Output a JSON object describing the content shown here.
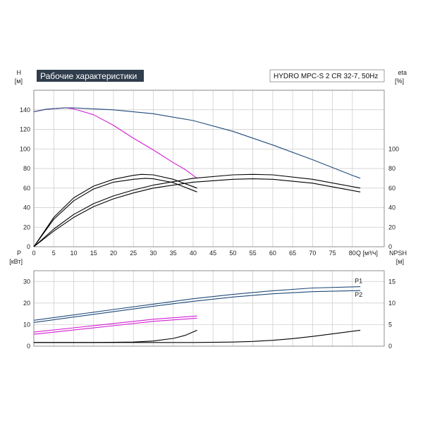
{
  "chart_data": [
    {
      "type": "line",
      "title": "Рабочие характеристики",
      "identifier": "HYDRO MPC-S 2 CR 32-7, 50Hz",
      "left_axis": {
        "label": "H",
        "unit": "[м]",
        "range": [
          0,
          160
        ],
        "ticks": [
          0,
          20,
          40,
          60,
          80,
          100,
          120,
          140
        ]
      },
      "right_axis": {
        "label": "eta",
        "unit": "[%]",
        "range": [
          0,
          160
        ],
        "ticks": [
          0,
          20,
          40,
          60,
          80,
          100
        ]
      },
      "x_axis": {
        "label": "Q [м³/ч]",
        "range": [
          0,
          88
        ],
        "ticks": [
          0,
          5,
          10,
          15,
          20,
          25,
          30,
          35,
          40,
          45,
          50,
          55,
          60,
          65,
          70,
          75,
          80
        ]
      },
      "grid": true,
      "series": [
        {
          "color": "#d21ed2",
          "x": [
            0,
            3,
            6,
            8,
            10,
            15,
            20,
            25,
            30,
            35,
            38,
            41
          ],
          "y": [
            138,
            140.5,
            141.5,
            142,
            141,
            135,
            124,
            111,
            99,
            86,
            79,
            70
          ]
        },
        {
          "color": "#1f4a7a",
          "x": [
            0,
            3,
            6,
            8,
            10,
            15,
            20,
            30,
            40,
            50,
            60,
            70,
            80,
            82
          ],
          "y": [
            138,
            140.5,
            141.5,
            142,
            142,
            141,
            140,
            136,
            129,
            118,
            104,
            89,
            73,
            70
          ]
        },
        {
          "color": "#000000",
          "x": [
            0,
            5,
            10,
            15,
            20,
            25,
            27,
            30,
            35,
            41
          ],
          "y": [
            0,
            30,
            50,
            62,
            69,
            73,
            74,
            73.5,
            69,
            60
          ]
        },
        {
          "color": "#000000",
          "x": [
            0,
            5,
            10,
            15,
            20,
            25,
            28,
            30,
            35,
            41
          ],
          "y": [
            0,
            28,
            47,
            59,
            66,
            69,
            70,
            69.5,
            65.5,
            56
          ]
        },
        {
          "color": "#000000",
          "x": [
            0,
            5,
            10,
            15,
            20,
            25,
            30,
            40,
            50,
            55,
            60,
            70,
            82
          ],
          "y": [
            0,
            18,
            33,
            44,
            52,
            58,
            63,
            70,
            73.5,
            74,
            73.5,
            69,
            60
          ]
        },
        {
          "color": "#000000",
          "x": [
            0,
            5,
            10,
            15,
            20,
            25,
            30,
            40,
            50,
            55,
            60,
            70,
            82
          ],
          "y": [
            0,
            16,
            30,
            41,
            49,
            55,
            60,
            66,
            69,
            69.5,
            69,
            65,
            56
          ]
        }
      ]
    },
    {
      "type": "line",
      "left_axis": {
        "label": "P",
        "unit": "[кВт]",
        "range": [
          0,
          35
        ],
        "ticks": [
          0,
          10,
          20,
          30
        ]
      },
      "right_axis": {
        "label": "NPSH",
        "unit": "[м]",
        "range": [
          0,
          17.5
        ],
        "ticks": [
          0,
          5,
          10,
          15
        ]
      },
      "x_axis": {
        "range": [
          0,
          88
        ],
        "ticks": [
          0,
          5,
          10,
          15,
          20,
          25,
          30,
          35,
          40,
          45,
          50,
          55,
          60,
          65,
          70,
          75,
          80
        ]
      },
      "grid": true,
      "series": [
        {
          "name": "P1",
          "color": "#1f4a7a",
          "x": [
            0,
            10,
            20,
            30,
            40,
            50,
            60,
            70,
            82
          ],
          "y": [
            12,
            14.5,
            17,
            19.5,
            22,
            24,
            25.7,
            27,
            27.6
          ]
        },
        {
          "name": "P2",
          "color": "#1f4a7a",
          "x": [
            0,
            10,
            20,
            30,
            40,
            50,
            60,
            70,
            82
          ],
          "y": [
            11,
            13.5,
            16,
            18.5,
            20.8,
            22.8,
            24.3,
            25.3,
            25.8
          ]
        },
        {
          "color": "#d21ed2",
          "x": [
            0,
            10,
            20,
            30,
            41
          ],
          "y": [
            6.5,
            8.5,
            10.5,
            12.5,
            14
          ]
        },
        {
          "color": "#d21ed2",
          "x": [
            0,
            10,
            20,
            30,
            41
          ],
          "y": [
            5.5,
            7.5,
            9.5,
            11.5,
            13
          ]
        },
        {
          "color": "#000000",
          "x": [
            0,
            15,
            25,
            30,
            35,
            38,
            41
          ],
          "y": [
            1.7,
            1.7,
            1.9,
            2.4,
            3.6,
            5,
            7.4
          ]
        },
        {
          "color": "#000000",
          "x": [
            0,
            40,
            50,
            55,
            60,
            65,
            70,
            75,
            82
          ],
          "y": [
            1.7,
            1.7,
            1.9,
            2.2,
            2.7,
            3.5,
            4.5,
            5.7,
            7.4
          ]
        }
      ]
    }
  ]
}
